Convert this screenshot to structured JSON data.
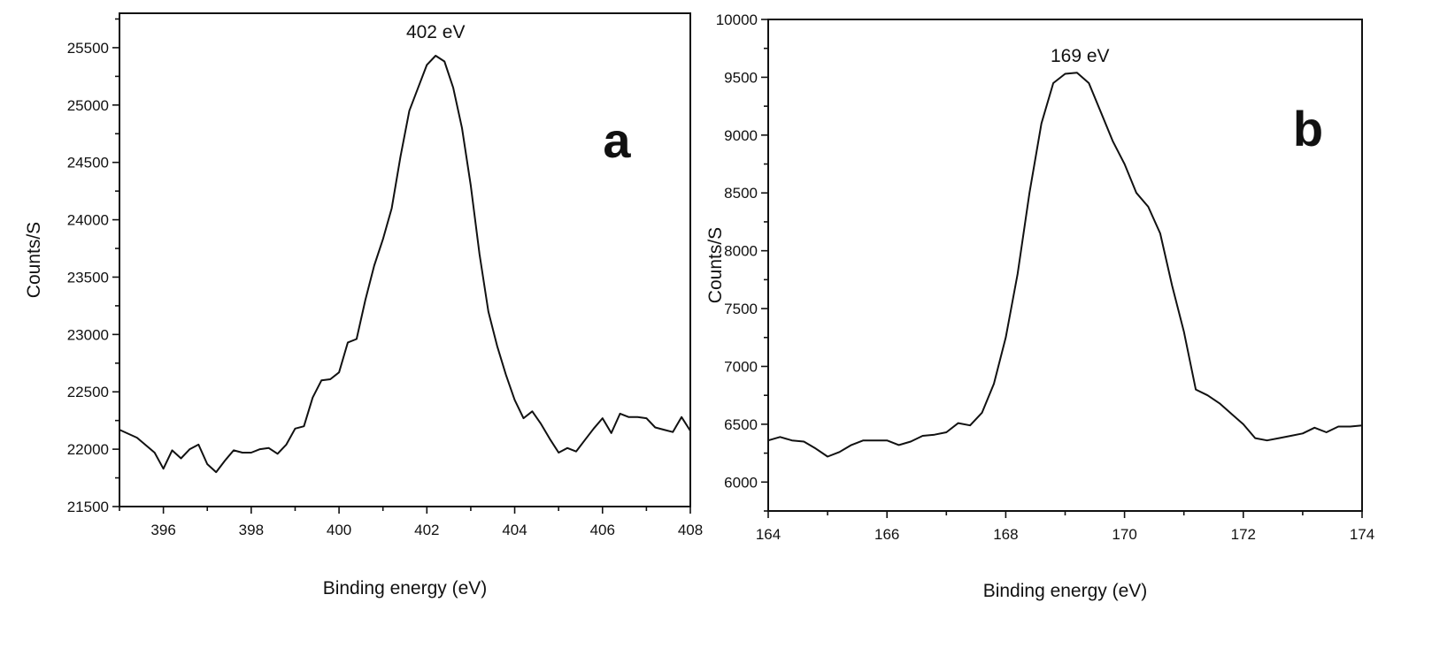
{
  "chart_data": [
    {
      "type": "line",
      "panel_label": "a",
      "peak_label": "402 eV",
      "peak_at": [
        402.2,
        25430
      ],
      "xlabel": "Binding energy (eV)",
      "ylabel": "Counts/S",
      "xlim": [
        395,
        408
      ],
      "ylim": [
        21500,
        25800
      ],
      "xticks": [
        396,
        398,
        400,
        402,
        404,
        406,
        408
      ],
      "yticks": [
        21500,
        22000,
        22500,
        23000,
        23500,
        24000,
        24500,
        25000,
        25500
      ],
      "grid": false,
      "series": [
        {
          "x": [
            395.0,
            395.4,
            395.8,
            396.0,
            396.2,
            396.4,
            396.6,
            396.8,
            397.0,
            397.2,
            397.4,
            397.6,
            397.8,
            398.0,
            398.2,
            398.4,
            398.6,
            398.8,
            399.0,
            399.2,
            399.4,
            399.6,
            399.8,
            400.0,
            400.2,
            400.4,
            400.6,
            400.8,
            401.0,
            401.2,
            401.4,
            401.6,
            401.8,
            402.0,
            402.2,
            402.4,
            402.6,
            402.8,
            403.0,
            403.2,
            403.4,
            403.6,
            403.8,
            404.0,
            404.2,
            404.4,
            404.6,
            404.8,
            405.0,
            405.2,
            405.4,
            405.6,
            405.8,
            406.0,
            406.2,
            406.4,
            406.6,
            406.8,
            407.0,
            407.2,
            407.4,
            407.6,
            407.8,
            408.0
          ],
          "y": [
            22170,
            22100,
            21970,
            21830,
            21990,
            21920,
            22000,
            22040,
            21870,
            21800,
            21900,
            21990,
            21970,
            21970,
            22000,
            22010,
            21960,
            22040,
            22180,
            22200,
            22450,
            22600,
            22610,
            22670,
            22930,
            22960,
            23300,
            23600,
            23830,
            24100,
            24550,
            24950,
            25150,
            25350,
            25430,
            25380,
            25150,
            24800,
            24300,
            23700,
            23200,
            22900,
            22650,
            22430,
            22270,
            22330,
            22220,
            22090,
            21970,
            22010,
            21980,
            22080,
            22180,
            22270,
            22140,
            22310,
            22280,
            22280,
            22270,
            22190,
            22170,
            22150,
            22280,
            22160
          ]
        }
      ]
    },
    {
      "type": "line",
      "panel_label": "b",
      "peak_label": "169 eV",
      "peak_at": [
        169.25,
        9540
      ],
      "xlabel": "Binding energy (eV)",
      "ylabel": "Counts/S",
      "xlim": [
        164,
        174
      ],
      "ylim": [
        5750,
        10000
      ],
      "xticks": [
        164,
        166,
        168,
        170,
        172,
        174
      ],
      "yticks": [
        6000,
        6500,
        7000,
        7500,
        8000,
        8500,
        9000,
        9500,
        10000
      ],
      "grid": false,
      "series": [
        {
          "x": [
            164.0,
            164.2,
            164.4,
            164.6,
            164.8,
            165.0,
            165.2,
            165.4,
            165.6,
            165.8,
            166.0,
            166.2,
            166.4,
            166.6,
            166.8,
            167.0,
            167.2,
            167.4,
            167.6,
            167.8,
            168.0,
            168.2,
            168.4,
            168.6,
            168.8,
            169.0,
            169.2,
            169.4,
            169.6,
            169.8,
            170.0,
            170.2,
            170.4,
            170.6,
            170.8,
            171.0,
            171.2,
            171.4,
            171.6,
            171.8,
            172.0,
            172.2,
            172.4,
            172.6,
            172.8,
            173.0,
            173.2,
            173.4,
            173.6,
            173.8,
            174.0
          ],
          "y": [
            6360,
            6390,
            6360,
            6350,
            6290,
            6220,
            6260,
            6320,
            6360,
            6360,
            6360,
            6320,
            6350,
            6400,
            6410,
            6430,
            6510,
            6490,
            6600,
            6850,
            7250,
            7800,
            8500,
            9100,
            9450,
            9530,
            9540,
            9450,
            9200,
            8950,
            8750,
            8500,
            8380,
            8150,
            7700,
            7300,
            6800,
            6750,
            6680,
            6590,
            6500,
            6380,
            6360,
            6380,
            6400,
            6420,
            6470,
            6430,
            6480,
            6480,
            6490
          ]
        }
      ]
    }
  ]
}
